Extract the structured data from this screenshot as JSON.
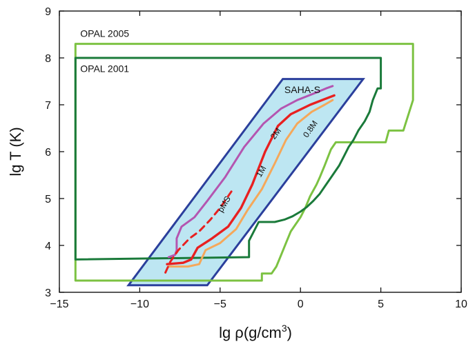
{
  "chart_data": {
    "type": "line",
    "title": "",
    "xlabel": "lg ρ(g/cm³)",
    "xlabel_parts": {
      "main": "lg ρ(g/cm",
      "sup": "3",
      "close": ")"
    },
    "ylabel": "lg T (K)",
    "xlim": [
      -15,
      10
    ],
    "ylim": [
      3,
      9
    ],
    "xticks": [
      -15,
      -10,
      -5,
      0,
      5,
      10
    ],
    "xtick_labels": [
      "−15",
      "−10",
      "−5",
      "0",
      "5",
      "10"
    ],
    "yticks": [
      3,
      4,
      5,
      6,
      7,
      8,
      9
    ],
    "ytick_labels": [
      "3",
      "4",
      "5",
      "6",
      "7",
      "8",
      "9"
    ],
    "grid": false,
    "colors": {
      "opal2005": "#7cc242",
      "opal2001": "#1a7a3a",
      "saha_fill": "#bde6f2",
      "saha_edge": "#2b3f9c",
      "m2": "#b455b0",
      "m1": "#e82020",
      "m08": "#f5a85a",
      "pms": "#e82020"
    },
    "annotations": [
      {
        "text": "OPAL 2005",
        "x": -13.7,
        "y": 8.45
      },
      {
        "text": "OPAL 2001",
        "x": -13.7,
        "y": 7.7
      },
      {
        "text": "SAHA-S",
        "x": -1.0,
        "y": 7.25
      },
      {
        "text": "2M",
        "x": -1.4,
        "y": 6.35,
        "rotate": -53
      },
      {
        "text": "1M",
        "x": -2.3,
        "y": 5.55,
        "rotate": -60
      },
      {
        "text": "0.8M",
        "x": 0.75,
        "y": 6.45,
        "rotate": -55
      },
      {
        "text": "pMS",
        "x": -4.6,
        "y": 4.85,
        "rotate": -60
      }
    ],
    "regions": [
      {
        "name": "SAHA-S",
        "points": [
          [
            -10.7,
            3.15
          ],
          [
            -5.8,
            3.15
          ],
          [
            3.9,
            7.55
          ],
          [
            -1.1,
            7.55
          ]
        ]
      }
    ],
    "series": [
      {
        "name": "OPAL 2005",
        "closed": true,
        "points": [
          [
            -14,
            8.3
          ],
          [
            7.0,
            8.3
          ],
          [
            7.0,
            7.1
          ],
          [
            6.4,
            6.45
          ],
          [
            5.5,
            6.45
          ],
          [
            5.3,
            6.2
          ],
          [
            2.2,
            6.2
          ],
          [
            1.9,
            6.05
          ],
          [
            1.5,
            5.7
          ],
          [
            1.2,
            5.45
          ],
          [
            1.0,
            5.3
          ],
          [
            0.6,
            5.05
          ],
          [
            0.3,
            4.8
          ],
          [
            0.0,
            4.6
          ],
          [
            -0.3,
            4.45
          ],
          [
            -0.6,
            4.3
          ],
          [
            -0.9,
            4.05
          ],
          [
            -1.2,
            3.8
          ],
          [
            -1.5,
            3.55
          ],
          [
            -1.8,
            3.4
          ],
          [
            -2.4,
            3.4
          ],
          [
            -2.4,
            3.25
          ],
          [
            -14,
            3.25
          ]
        ]
      },
      {
        "name": "OPAL 2001",
        "closed": true,
        "points": [
          [
            -14,
            8.0
          ],
          [
            5.0,
            8.0
          ],
          [
            5.0,
            7.35
          ],
          [
            4.8,
            7.35
          ],
          [
            4.5,
            7.1
          ],
          [
            4.3,
            6.85
          ],
          [
            4.0,
            6.65
          ],
          [
            3.6,
            6.45
          ],
          [
            3.3,
            6.25
          ],
          [
            3.0,
            6.1
          ],
          [
            2.7,
            5.9
          ],
          [
            2.4,
            5.7
          ],
          [
            2.0,
            5.5
          ],
          [
            1.6,
            5.3
          ],
          [
            1.2,
            5.1
          ],
          [
            0.8,
            4.95
          ],
          [
            0.4,
            4.82
          ],
          [
            0.0,
            4.72
          ],
          [
            -0.5,
            4.62
          ],
          [
            -1.0,
            4.55
          ],
          [
            -1.6,
            4.5
          ],
          [
            -2.1,
            4.5
          ],
          [
            -2.6,
            4.5
          ],
          [
            -3.2,
            4.1
          ],
          [
            -3.2,
            3.75
          ],
          [
            -14,
            3.7
          ]
        ]
      },
      {
        "name": "2M",
        "dashed": false,
        "points": [
          [
            -8.2,
            3.75
          ],
          [
            -7.8,
            3.8
          ],
          [
            -7.7,
            3.9
          ],
          [
            -7.7,
            4.15
          ],
          [
            -7.4,
            4.4
          ],
          [
            -6.6,
            4.6
          ],
          [
            -5.8,
            4.95
          ],
          [
            -4.7,
            5.45
          ],
          [
            -3.5,
            6.1
          ],
          [
            -2.3,
            6.6
          ],
          [
            -1.2,
            6.92
          ],
          [
            -0.2,
            7.1
          ],
          [
            0.9,
            7.25
          ],
          [
            1.6,
            7.35
          ],
          [
            2.0,
            7.4
          ]
        ]
      },
      {
        "name": "1M",
        "dashed": false,
        "points": [
          [
            -8.3,
            3.6
          ],
          [
            -7.3,
            3.63
          ],
          [
            -6.8,
            3.7
          ],
          [
            -6.4,
            3.95
          ],
          [
            -5.5,
            4.15
          ],
          [
            -4.5,
            4.4
          ],
          [
            -3.7,
            4.8
          ],
          [
            -3.0,
            5.3
          ],
          [
            -2.2,
            6.0
          ],
          [
            -1.4,
            6.55
          ],
          [
            -0.6,
            6.8
          ],
          [
            0.6,
            7.0
          ],
          [
            1.5,
            7.12
          ],
          [
            2.1,
            7.2
          ]
        ]
      },
      {
        "name": "0.8M",
        "dashed": false,
        "points": [
          [
            -8.2,
            3.55
          ],
          [
            -7.0,
            3.55
          ],
          [
            -6.3,
            3.6
          ],
          [
            -5.9,
            3.9
          ],
          [
            -5.0,
            4.05
          ],
          [
            -4.0,
            4.35
          ],
          [
            -3.3,
            4.75
          ],
          [
            -2.4,
            5.2
          ],
          [
            -1.6,
            5.75
          ],
          [
            -0.9,
            6.25
          ],
          [
            -0.2,
            6.6
          ],
          [
            0.7,
            6.85
          ],
          [
            1.5,
            7.0
          ],
          [
            2.0,
            7.1
          ]
        ]
      },
      {
        "name": "pMS",
        "dashed": true,
        "points": [
          [
            -8.4,
            3.42
          ],
          [
            -8.1,
            3.65
          ],
          [
            -7.6,
            3.9
          ],
          [
            -6.9,
            4.15
          ],
          [
            -6.3,
            4.3
          ],
          [
            -5.6,
            4.55
          ],
          [
            -5.0,
            4.8
          ],
          [
            -4.3,
            5.15
          ]
        ]
      }
    ]
  }
}
